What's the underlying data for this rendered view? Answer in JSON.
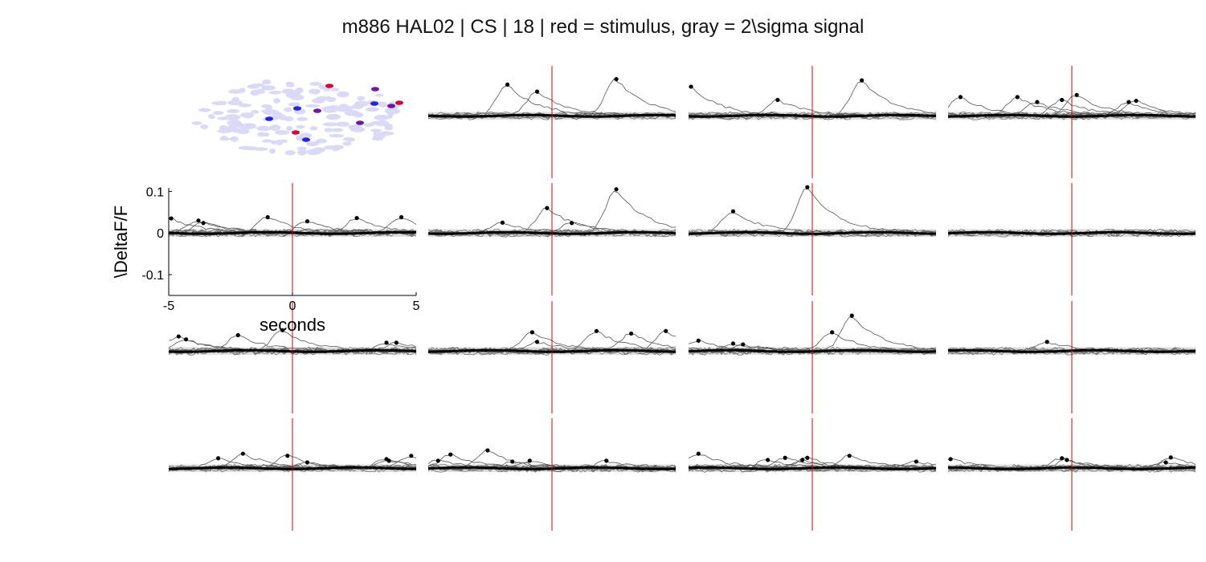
{
  "figure": {
    "title": "m886 HAL02 | CS | 18 | red = stimulus, gray = 2\\sigma signal"
  },
  "chart_data": {
    "type": "line",
    "title": "m886 HAL02 | CS | 18 | red = stimulus, gray = 2\\sigma signal",
    "xlabel": "seconds",
    "ylabel": "\\DeltaF/F",
    "xlim": [
      -5,
      5
    ],
    "ylim": [
      -0.15,
      0.12
    ],
    "x_ticks": [
      "-5",
      "0",
      "5"
    ],
    "y_ticks": [
      "0.1",
      "0",
      "-0.1"
    ],
    "stimulus_time": 0,
    "stimulus_color": "#dd0000",
    "band_color": "#dcdcdc",
    "trace_color": "#666666",
    "mean_color": "#000000",
    "grid": false,
    "layout": "4x4 small multiples; top-left panel shows ROI map",
    "roi_map": {
      "description_colors": {
        "background_rois": "#dadaf7",
        "blue": "#2424e6",
        "red": "#cc0a3a",
        "purple": "#6a1a9e"
      }
    },
    "panels": [
      {
        "row": 1,
        "col": 2,
        "peaks": [
          [
            -1.8,
            0.075
          ],
          [
            -0.6,
            0.058
          ],
          [
            2.6,
            0.088
          ]
        ]
      },
      {
        "row": 1,
        "col": 3,
        "peaks": [
          [
            -4.9,
            0.07
          ],
          [
            -1.4,
            0.038
          ],
          [
            2.0,
            0.085
          ]
        ]
      },
      {
        "row": 1,
        "col": 4,
        "peaks": [
          [
            -4.5,
            0.045
          ],
          [
            -2.2,
            0.045
          ],
          [
            -1.4,
            0.033
          ],
          [
            -0.4,
            0.038
          ],
          [
            0.2,
            0.05
          ],
          [
            2.3,
            0.033
          ],
          [
            2.6,
            0.036
          ]
        ]
      },
      {
        "row": 2,
        "col": 1,
        "peaks": [
          [
            -4.9,
            0.035
          ],
          [
            -3.8,
            0.03
          ],
          [
            -3.6,
            0.024
          ],
          [
            -1.0,
            0.038
          ],
          [
            0.6,
            0.028
          ],
          [
            2.6,
            0.036
          ],
          [
            4.4,
            0.038
          ]
        ]
      },
      {
        "row": 2,
        "col": 2,
        "peaks": [
          [
            -2.0,
            0.025
          ],
          [
            -0.2,
            0.06
          ],
          [
            0.8,
            0.024
          ],
          [
            2.6,
            0.105
          ]
        ]
      },
      {
        "row": 2,
        "col": 3,
        "peaks": [
          [
            -3.2,
            0.052
          ],
          [
            -0.2,
            0.11
          ]
        ]
      },
      {
        "row": 3,
        "col": 1,
        "peaks": [
          [
            -4.6,
            0.035
          ],
          [
            -4.3,
            0.028
          ],
          [
            -2.2,
            0.038
          ],
          [
            -0.4,
            0.05
          ],
          [
            3.8,
            0.02
          ],
          [
            4.2,
            0.02
          ]
        ]
      },
      {
        "row": 3,
        "col": 2,
        "peaks": [
          [
            -0.8,
            0.045
          ],
          [
            -0.6,
            0.022
          ],
          [
            1.8,
            0.048
          ],
          [
            3.2,
            0.042
          ],
          [
            4.6,
            0.048
          ]
        ]
      },
      {
        "row": 3,
        "col": 3,
        "peaks": [
          [
            -4.6,
            0.025
          ],
          [
            -3.2,
            0.018
          ],
          [
            -2.8,
            0.016
          ],
          [
            0.8,
            0.045
          ],
          [
            1.6,
            0.085
          ]
        ]
      },
      {
        "row": 3,
        "col": 4,
        "peaks": [
          [
            -1.0,
            0.022
          ]
        ]
      },
      {
        "row": 4,
        "col": 1,
        "peaks": [
          [
            -3.0,
            0.024
          ],
          [
            -2.0,
            0.035
          ],
          [
            -0.2,
            0.03
          ],
          [
            0.6,
            0.014
          ],
          [
            3.8,
            0.022
          ],
          [
            3.9,
            0.018
          ],
          [
            4.8,
            0.03
          ]
        ]
      },
      {
        "row": 4,
        "col": 2,
        "peaks": [
          [
            -4.6,
            0.018
          ],
          [
            -4.1,
            0.033
          ],
          [
            -2.6,
            0.043
          ],
          [
            -1.6,
            0.016
          ],
          [
            -0.9,
            0.018
          ],
          [
            2.2,
            0.018
          ]
        ]
      },
      {
        "row": 4,
        "col": 3,
        "peaks": [
          [
            -4.6,
            0.035
          ],
          [
            -1.8,
            0.02
          ],
          [
            -1.1,
            0.025
          ],
          [
            -0.4,
            0.02
          ],
          [
            -0.2,
            0.025
          ],
          [
            1.5,
            0.03
          ],
          [
            4.2,
            0.016
          ]
        ]
      },
      {
        "row": 4,
        "col": 4,
        "peaks": [
          [
            -4.9,
            0.022
          ],
          [
            -0.4,
            0.024
          ],
          [
            -0.2,
            0.02
          ],
          [
            3.8,
            0.014
          ],
          [
            4.0,
            0.026
          ]
        ]
      }
    ]
  }
}
